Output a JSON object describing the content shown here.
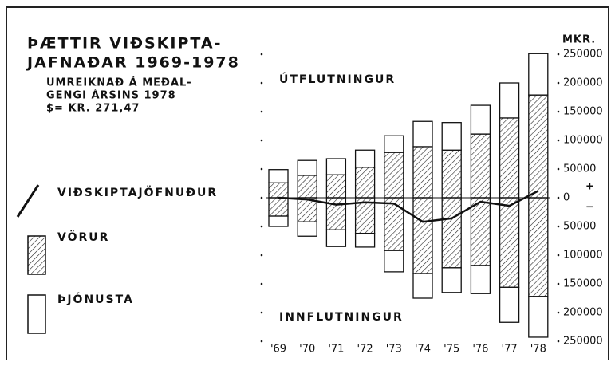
{
  "chart_data": {
    "type": "diverging-stacked-bar",
    "title": [
      "ÞÆTTIR VIÐSKIPTA-",
      "JAFNAÐAR 1969-1978"
    ],
    "subtitle": [
      "UMREIKNAÐ Á MEÐAL-",
      "GENGI ÁRSINS 1978",
      "$= KR. 271,47"
    ],
    "upper_label": "ÚTFLUTNINGUR",
    "lower_label": "INNFLUTNINGUR",
    "y_axis_label": "MKR.",
    "plus_sign": "+",
    "minus_sign": "−",
    "categories": [
      "'69",
      "'70",
      "'71",
      "'72",
      "'73",
      "'74",
      "'75",
      "'76",
      "'77",
      "'78"
    ],
    "series": [
      {
        "name": "VÖRUR",
        "style": "hatched",
        "exports": [
          26000,
          39000,
          40000,
          53000,
          79000,
          89000,
          83000,
          111000,
          139000,
          179000
        ],
        "imports": [
          -32000,
          -42000,
          -56000,
          -62000,
          -92000,
          -132000,
          -122000,
          -118000,
          -156000,
          -172000
        ]
      },
      {
        "name": "ÞJÓNUSTA",
        "style": "open",
        "exports": [
          23000,
          26000,
          28000,
          30000,
          29000,
          44000,
          48000,
          50000,
          61000,
          72000
        ],
        "imports": [
          -18000,
          -25000,
          -29000,
          -24000,
          -37000,
          -43000,
          -43000,
          -49000,
          -61000,
          -71000
        ]
      }
    ],
    "line": {
      "name": "VIÐSKIPTAJÖFNUÐUR",
      "values": [
        0,
        -3000,
        -12000,
        -8000,
        -10000,
        -42000,
        -36000,
        -7000,
        -14000,
        12000
      ]
    },
    "ylim": [
      -250000,
      250000
    ],
    "yticks": [
      {
        "value": 250000,
        "label": "250000"
      },
      {
        "value": 200000,
        "label": "200000"
      },
      {
        "value": 150000,
        "label": "150000"
      },
      {
        "value": 100000,
        "label": "100000"
      },
      {
        "value": 50000,
        "label": "50000"
      },
      0,
      {
        "value": -50000,
        "label": "50000"
      },
      {
        "value": -100000,
        "label": "100000"
      },
      {
        "value": -150000,
        "label": "150000"
      },
      {
        "value": -200000,
        "label": "200000"
      },
      {
        "value": -250000,
        "label": "250000"
      }
    ]
  }
}
